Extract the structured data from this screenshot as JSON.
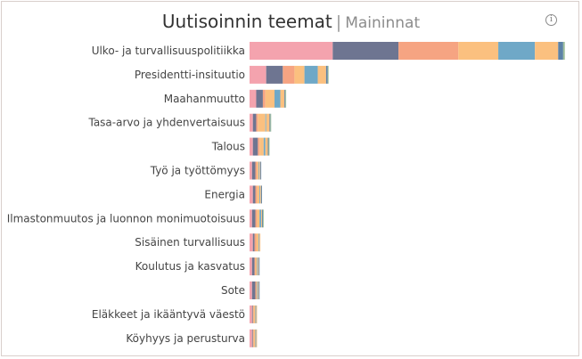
{
  "header": {
    "title": "Uutisoinnin teemat",
    "separator": "|",
    "subtitle": "Maininnat",
    "info_icon": "info-icon"
  },
  "chart_data": {
    "type": "bar",
    "orientation": "horizontal",
    "stacked": true,
    "xlim": [
      0,
      375
    ],
    "grid": false,
    "legend": "none",
    "categories": [
      "Ulko- ja turvallisuuspolitiikka",
      "Presidentti-insituutio",
      "Maahanmuutto",
      "Tasa-arvo ja yhdenvertaisuus",
      "Talous",
      "Työ ja työttömyys",
      "Energia",
      "Ilmastonmuutos ja luonnon monimuotoisuus",
      "Sisäinen turvallisuus",
      "Koulutus ja kasvatus",
      "Sote",
      "Eläkkeet ja ikääntyvä väestö",
      "Köyhyys ja perusturva"
    ],
    "series": [
      {
        "color": "#f4a3ae",
        "values": [
          100,
          20,
          8,
          4,
          4,
          3,
          4,
          3,
          4,
          3,
          3,
          3,
          3
        ]
      },
      {
        "color": "#6e7591",
        "values": [
          79,
          20,
          8,
          4,
          6,
          4,
          3,
          4,
          2,
          3,
          4,
          1,
          1
        ]
      },
      {
        "color": "#f6a482",
        "values": [
          72,
          14,
          3,
          2,
          2,
          2,
          2,
          2,
          2,
          1,
          1,
          1,
          1
        ]
      },
      {
        "color": "#fbc07f",
        "values": [
          48,
          12,
          11,
          9,
          5,
          2,
          3,
          3,
          3,
          2,
          1,
          2,
          2
        ]
      },
      {
        "color": "#6fa8c7",
        "values": [
          44,
          16,
          7,
          1,
          2,
          1,
          1,
          2,
          1,
          1,
          1,
          1,
          1
        ]
      },
      {
        "color": "#fbc07f",
        "values": [
          28,
          10,
          5,
          4,
          3,
          1,
          1,
          1,
          1,
          1,
          1,
          1,
          1
        ]
      },
      {
        "color": "#5d82a6",
        "values": [
          6,
          2,
          1,
          1,
          1,
          1,
          1,
          1,
          0,
          1,
          1,
          0,
          0
        ]
      },
      {
        "color": "#9fbf9a",
        "values": [
          2,
          1,
          1,
          1,
          1,
          0,
          0,
          1,
          0,
          0,
          0,
          0,
          0
        ]
      }
    ]
  }
}
